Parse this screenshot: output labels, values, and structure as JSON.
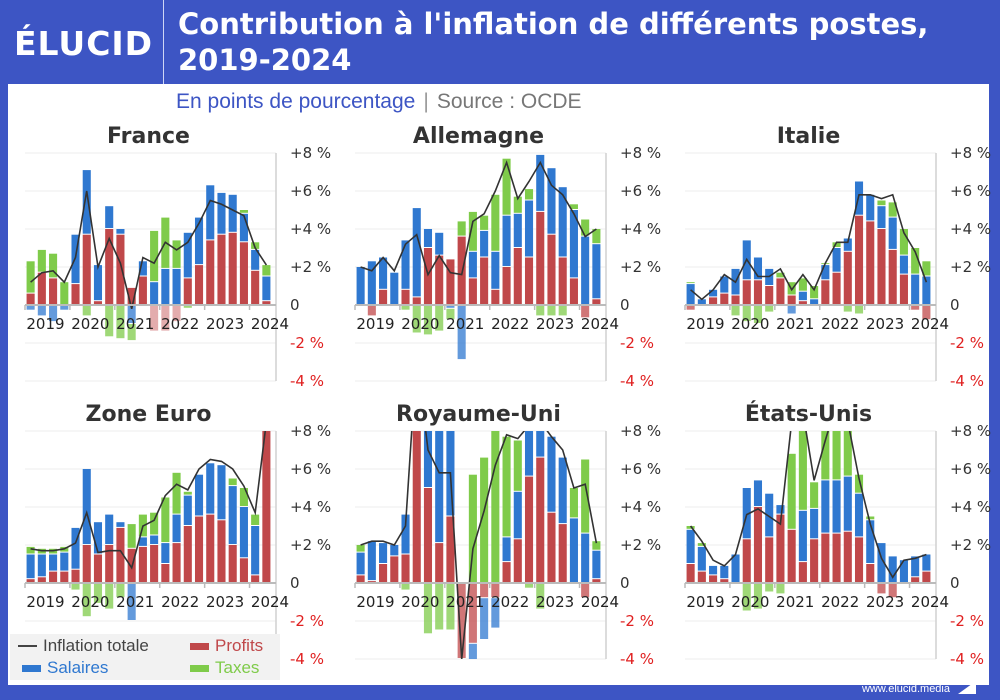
{
  "header": {
    "logo": "ÉLUCID",
    "title_line1": "Contribution à l'inflation de différents postes,",
    "title_line2": "2019-2024",
    "subtitle": "En points de pourcentage",
    "source": "Source : OCDE"
  },
  "legend": {
    "total": "Inflation totale",
    "profits": "Profits",
    "salaires": "Salaires",
    "taxes": "Taxes"
  },
  "footer": {
    "url": "www.elucid.media"
  },
  "colors": {
    "profits": "#c0484a",
    "salaires": "#2f78d0",
    "taxes": "#7fcb4a",
    "line": "#333333",
    "neg_label": "#e02020",
    "pos_label": "#333333",
    "brand": "#3d55c4"
  },
  "chart_data": [
    {
      "type": "bar",
      "stacked": true,
      "title": "France",
      "x": [
        "2019T1",
        "2019T2",
        "2019T3",
        "2019T4",
        "2020T1",
        "2020T2",
        "2020T3",
        "2020T4",
        "2021T1",
        "2021T2",
        "2021T3",
        "2021T4",
        "2022T1",
        "2022T2",
        "2022T3",
        "2022T4",
        "2023T1",
        "2023T2",
        "2023T3",
        "2023T4",
        "2024T1",
        "2024T2"
      ],
      "xticks": [
        "2019",
        "2020",
        "2021",
        "2022",
        "2023",
        "2024"
      ],
      "yticks": [
        "+8 %",
        "+6 %",
        "+4 %",
        "+2 %",
        "0",
        "-2 %",
        "-4 %"
      ],
      "ylim": [
        -4,
        8
      ],
      "series": [
        {
          "name": "Profits",
          "values": [
            0.6,
            1.7,
            1.4,
            0,
            1.1,
            3.7,
            0.2,
            4.0,
            3.7,
            0.9,
            1.5,
            0,
            0,
            0,
            1.4,
            2.1,
            3.4,
            3.7,
            3.8,
            3.3,
            1.8,
            0.2
          ]
        },
        {
          "name": "Salaires",
          "values": [
            -0.3,
            -0.6,
            -0.9,
            -0.3,
            2.6,
            3.4,
            1.9,
            1.2,
            0.3,
            -1.0,
            0.8,
            1.2,
            1.9,
            1.9,
            2.4,
            2.5,
            2.9,
            2.2,
            2.0,
            1.5,
            1.1,
            1.3
          ]
        },
        {
          "name": "Taxes",
          "values": [
            1.7,
            1.2,
            1.3,
            1.2,
            -0.1,
            -0.6,
            0,
            -1.7,
            -1.8,
            -0.9,
            0,
            2.7,
            2.7,
            1.5,
            -0.2,
            -0.1,
            0,
            0,
            -0.1,
            0.2,
            0.4,
            0.6
          ]
        },
        {
          "name": "Profits_neg",
          "values": [
            0,
            0,
            0,
            0,
            0,
            0,
            0,
            0,
            0,
            0,
            0,
            -1.4,
            -1.4,
            -0.9,
            0,
            0,
            0,
            0,
            0,
            0,
            0,
            0
          ]
        }
      ],
      "line": {
        "name": "Inflation totale",
        "values": [
          1.2,
          1.7,
          1.8,
          1.2,
          2.5,
          6.0,
          2.0,
          3.5,
          2.2,
          -0.2,
          2.5,
          2.2,
          3.3,
          2.9,
          3.3,
          4.3,
          5.5,
          5.3,
          5.0,
          4.7,
          3.0,
          2.1
        ]
      }
    },
    {
      "type": "bar",
      "stacked": true,
      "title": "Allemagne",
      "x": [
        "2019T1",
        "2019T2",
        "2019T3",
        "2019T4",
        "2020T1",
        "2020T2",
        "2020T3",
        "2020T4",
        "2021T1",
        "2021T2",
        "2021T3",
        "2021T4",
        "2022T1",
        "2022T2",
        "2022T3",
        "2022T4",
        "2023T1",
        "2023T2",
        "2023T3",
        "2023T4",
        "2024T1",
        "2024T2"
      ],
      "xticks": [
        "2019",
        "2020",
        "2021",
        "2022",
        "2023",
        "2024"
      ],
      "yticks": [
        "+8 %",
        "+6 %",
        "+4 %",
        "+2 %",
        "0",
        "-2 %",
        "-4 %"
      ],
      "ylim": [
        -4,
        8
      ],
      "series": [
        {
          "name": "Profits",
          "values": [
            0,
            -0.6,
            0.8,
            0,
            0.8,
            0.4,
            3.0,
            2.6,
            2.4,
            3.6,
            1.4,
            2.5,
            0.8,
            2.0,
            3.0,
            2.5,
            4.9,
            3.7,
            2.5,
            1.4,
            -0.7,
            0.3
          ]
        },
        {
          "name": "Salaires",
          "values": [
            2.0,
            2.3,
            1.7,
            1.7,
            2.6,
            4.7,
            1.0,
            1.2,
            -0.2,
            -2.9,
            1.4,
            1.4,
            2.0,
            2.7,
            1.8,
            3.0,
            3.0,
            3.5,
            3.7,
            3.6,
            3.6,
            2.9
          ]
        },
        {
          "name": "Taxes",
          "values": [
            0,
            0,
            0,
            0,
            -0.3,
            -1.5,
            -1.6,
            -1.4,
            -0.6,
            0.8,
            2.1,
            0.8,
            3.0,
            3.0,
            0.9,
            0.6,
            -0.6,
            -0.6,
            -0.6,
            0.3,
            0.9,
            0.8
          ]
        }
      ],
      "line": {
        "name": "Inflation totale",
        "values": [
          2.0,
          1.8,
          2.5,
          1.8,
          3.2,
          3.7,
          1.6,
          2.6,
          1.7,
          1.6,
          4.4,
          4.8,
          6.0,
          7.5,
          5.6,
          6.5,
          7.5,
          6.3,
          5.8,
          4.8,
          3.6,
          4.0
        ]
      }
    },
    {
      "type": "bar",
      "stacked": true,
      "title": "Italie",
      "x": [
        "2019T1",
        "2019T2",
        "2019T3",
        "2019T4",
        "2020T1",
        "2020T2",
        "2020T3",
        "2020T4",
        "2021T1",
        "2021T2",
        "2021T3",
        "2021T4",
        "2022T1",
        "2022T2",
        "2022T3",
        "2022T4",
        "2023T1",
        "2023T2",
        "2023T3",
        "2023T4",
        "2024T1",
        "2024T2"
      ],
      "xticks": [
        "2019",
        "2020",
        "2021",
        "2022",
        "2023",
        "2024"
      ],
      "yticks": [
        "+8 %",
        "+6 %",
        "+4 %",
        "+2 %",
        "0",
        "-2 %",
        "-4 %"
      ],
      "ylim": [
        -4,
        8
      ],
      "series": [
        {
          "name": "Profits",
          "values": [
            -0.3,
            0,
            0.4,
            0.6,
            0.5,
            1.3,
            1.3,
            1.0,
            1.4,
            0.5,
            0.2,
            -0.1,
            1.3,
            1.7,
            2.8,
            4.7,
            4.4,
            4.0,
            2.9,
            1.6,
            -0.3,
            -0.8
          ]
        },
        {
          "name": "Salaires",
          "values": [
            1.1,
            0.3,
            0.4,
            0.9,
            1.4,
            2.1,
            1.2,
            0.9,
            0,
            -0.5,
            0.5,
            0.3,
            0.8,
            1.3,
            0.7,
            1.8,
            1.4,
            1.2,
            1.7,
            1.0,
            1.6,
            1.5
          ]
        },
        {
          "name": "Taxes",
          "values": [
            0.1,
            0,
            0,
            0,
            -0.6,
            -0.9,
            -1.0,
            -0.4,
            0.3,
            0.7,
            0.7,
            0.7,
            0.1,
            0.3,
            -0.4,
            -0.5,
            0,
            0.3,
            0.8,
            1.4,
            1.4,
            0.8
          ]
        }
      ],
      "line": {
        "name": "Inflation totale",
        "values": [
          0.8,
          0.3,
          0.8,
          1.6,
          1.2,
          2.4,
          1.5,
          1.5,
          1.9,
          0.8,
          1.6,
          0.8,
          2.2,
          3.3,
          3.3,
          5.8,
          5.8,
          5.6,
          5.8,
          3.8,
          2.8,
          1.2
        ]
      }
    },
    {
      "type": "bar",
      "stacked": true,
      "title": "Zone Euro",
      "x": [
        "2019T1",
        "2019T2",
        "2019T3",
        "2019T4",
        "2020T1",
        "2020T2",
        "2020T3",
        "2020T4",
        "2021T1",
        "2021T2",
        "2021T3",
        "2021T4",
        "2022T1",
        "2022T2",
        "2022T3",
        "2022T4",
        "2023T1",
        "2023T2",
        "2023T3",
        "2023T4",
        "2024T1",
        "2024T2"
      ],
      "xticks": [
        "2019",
        "2020",
        "2021",
        "2022",
        "2023",
        "2024"
      ],
      "yticks": [
        "+8 %",
        "+6 %",
        "+4 %",
        "+2 %",
        "0",
        "-2 %",
        "-4 %"
      ],
      "ylim": [
        -4,
        8
      ],
      "series": [
        {
          "name": "Profits",
          "values": [
            0.2,
            0.3,
            0.6,
            0.6,
            0.7,
            2.0,
            1.5,
            2.0,
            2.9,
            1.8,
            1.9,
            2.0,
            1.0,
            2.1,
            3.0,
            3.5,
            3.6,
            3.3,
            2.0,
            1.3,
            0.4,
            8.5
          ]
        },
        {
          "name": "Salaires",
          "values": [
            1.3,
            1.2,
            0.9,
            1.0,
            2.2,
            4.0,
            1.7,
            1.6,
            0.3,
            -2.0,
            0.5,
            0.5,
            1.1,
            1.5,
            1.6,
            2.2,
            2.7,
            2.9,
            3.1,
            2.7,
            2.6,
            0
          ]
        },
        {
          "name": "Taxes",
          "values": [
            0.4,
            0.3,
            0.3,
            0.3,
            -0.4,
            -1.8,
            -1.1,
            -1.4,
            -0.8,
            1.3,
            1.2,
            1.2,
            2.4,
            2.2,
            0.2,
            0,
            0,
            0,
            0.4,
            1.0,
            0.6,
            0
          ]
        }
      ],
      "line": {
        "name": "Inflation totale",
        "values": [
          1.8,
          1.7,
          1.7,
          1.8,
          2.1,
          3.7,
          1.6,
          1.7,
          1.7,
          0.8,
          3.0,
          3.3,
          4.6,
          5.2,
          4.9,
          6.0,
          6.5,
          6.4,
          6.0,
          5.1,
          3.7,
          8.5
        ]
      }
    },
    {
      "type": "bar",
      "stacked": true,
      "title": "Royaume-Uni",
      "x": [
        "2019T1",
        "2019T2",
        "2019T3",
        "2019T4",
        "2020T1",
        "2020T2",
        "2020T3",
        "2020T4",
        "2021T1",
        "2021T2",
        "2021T3",
        "2021T4",
        "2022T1",
        "2022T2",
        "2022T3",
        "2022T4",
        "2023T1",
        "2023T2",
        "2023T3",
        "2023T4",
        "2024T1",
        "2024T2"
      ],
      "xticks": [
        "2019",
        "2020",
        "2021",
        "2022",
        "2023",
        "2024"
      ],
      "yticks": [
        "+8 %",
        "+6 %",
        "+4 %",
        "+2 %",
        "0",
        "-2 %",
        "-4 %"
      ],
      "ylim": [
        -4,
        8
      ],
      "series": [
        {
          "name": "Profits",
          "values": [
            0.4,
            0.1,
            1.0,
            1.4,
            1.5,
            9.0,
            5.0,
            2.1,
            3.5,
            -4.0,
            -3.2,
            -0.8,
            -0.8,
            1.1,
            2.3,
            5.6,
            6.6,
            3.7,
            3.1,
            -0.1,
            -0.8,
            0.2
          ]
        },
        {
          "name": "Salaires",
          "values": [
            1.2,
            2.1,
            1.1,
            0.6,
            2.1,
            0,
            4.0,
            6.5,
            5.0,
            0,
            -0.9,
            -2.2,
            -1.6,
            1.3,
            2.5,
            3.5,
            2.5,
            4.0,
            3.5,
            3.4,
            2.6,
            1.5
          ]
        },
        {
          "name": "Taxes",
          "values": [
            0.4,
            0,
            0,
            0,
            -0.4,
            0,
            -2.7,
            -2.5,
            -2.5,
            0,
            5.7,
            6.6,
            8.5,
            5.3,
            2.7,
            -0.3,
            -1.4,
            0,
            0,
            1.6,
            3.9,
            0.5
          ]
        }
      ],
      "line": {
        "name": "Inflation totale",
        "values": [
          2.0,
          2.2,
          2.2,
          2.0,
          3.0,
          12.0,
          7.0,
          5.8,
          5.8,
          -4.0,
          1.8,
          3.8,
          6.2,
          7.8,
          7.6,
          8.3,
          8.5,
          7.7,
          7.0,
          5.0,
          5.2,
          2.1
        ]
      }
    },
    {
      "type": "bar",
      "stacked": true,
      "title": "États-Unis",
      "x": [
        "2019T1",
        "2019T2",
        "2019T3",
        "2019T4",
        "2020T1",
        "2020T2",
        "2020T3",
        "2020T4",
        "2021T1",
        "2021T2",
        "2021T3",
        "2021T4",
        "2022T1",
        "2022T2",
        "2022T3",
        "2022T4",
        "2023T1",
        "2023T2",
        "2023T3",
        "2023T4",
        "2024T1",
        "2024T2"
      ],
      "xticks": [
        "2019",
        "2020",
        "2021",
        "2022",
        "2023",
        "2024"
      ],
      "yticks": [
        "+8 %",
        "+6 %",
        "+4 %",
        "+2 %",
        "0",
        "-2 %",
        "-4 %"
      ],
      "ylim": [
        -4,
        8
      ],
      "series": [
        {
          "name": "Profits",
          "values": [
            1.0,
            0.6,
            0.4,
            0.2,
            0,
            2.3,
            4.0,
            2.4,
            3.6,
            2.8,
            1.1,
            2.3,
            2.6,
            2.6,
            2.7,
            2.4,
            1.0,
            -0.6,
            -0.8,
            0,
            0.3,
            0.6
          ]
        },
        {
          "name": "Salaires",
          "values": [
            1.8,
            1.3,
            0.5,
            0.7,
            1.5,
            2.7,
            1.4,
            2.3,
            0.5,
            0,
            2.7,
            1.6,
            2.8,
            2.8,
            2.9,
            2.3,
            2.3,
            2.1,
            1.4,
            1.2,
            1.1,
            0.9
          ]
        },
        {
          "name": "Taxes",
          "values": [
            0.2,
            0.2,
            0,
            0,
            0,
            -1.5,
            -1.4,
            -0.5,
            -0.6,
            4.0,
            4.5,
            1.4,
            3.2,
            3.6,
            2.7,
            1.0,
            0.2,
            0,
            0,
            0,
            0,
            0
          ]
        }
      ],
      "line": {
        "name": "Inflation totale",
        "values": [
          3.0,
          2.2,
          1.2,
          0.9,
          1.5,
          3.6,
          3.9,
          3.5,
          3.1,
          8.5,
          9.0,
          5.4,
          7.5,
          9.5,
          8.5,
          5.5,
          3.1,
          1.3,
          0.3,
          1.2,
          1.3,
          1.5
        ]
      }
    }
  ]
}
